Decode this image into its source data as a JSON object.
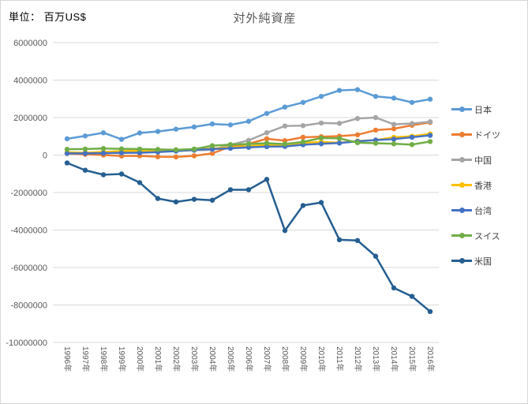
{
  "header": {
    "unit_label": "単位： 百万US$",
    "title": "対外純資産"
  },
  "chart_data": {
    "type": "line",
    "title": "対外純資産",
    "unit": "百万US$",
    "x": [
      "1996年",
      "1997年",
      "1998年",
      "1999年",
      "2000年",
      "2001年",
      "2002年",
      "2003年",
      "2004年",
      "2005年",
      "2006年",
      "2007年",
      "2008年",
      "2009年",
      "2010年",
      "2011年",
      "2012年",
      "2013年",
      "2014年",
      "2015年",
      "2016年"
    ],
    "series": [
      {
        "name": "日本",
        "color": "#5B9BD5",
        "values": [
          870000,
          1020000,
          1190000,
          840000,
          1180000,
          1260000,
          1380000,
          1500000,
          1660000,
          1610000,
          1800000,
          2220000,
          2560000,
          2810000,
          3130000,
          3450000,
          3490000,
          3130000,
          3040000,
          2810000,
          2980000
        ]
      },
      {
        "name": "ドイツ",
        "color": "#ED7D31",
        "values": [
          80000,
          40000,
          0,
          -50000,
          -40000,
          -90000,
          -100000,
          -40000,
          90000,
          450000,
          600000,
          870000,
          770000,
          950000,
          980000,
          1010000,
          1080000,
          1330000,
          1400000,
          1590000,
          1740000
        ]
      },
      {
        "name": "中国",
        "color": "#A5A5A5",
        "values": [
          100000,
          120000,
          130000,
          100000,
          150000,
          180000,
          220000,
          250000,
          280000,
          550000,
          780000,
          1190000,
          1550000,
          1570000,
          1710000,
          1690000,
          1950000,
          2000000,
          1640000,
          1680000,
          1780000
        ]
      },
      {
        "name": "香港",
        "color": "#FFC000",
        "values": [
          150000,
          120000,
          170000,
          210000,
          230000,
          250000,
          270000,
          310000,
          350000,
          410000,
          470000,
          550000,
          490000,
          650000,
          700000,
          660000,
          750000,
          800000,
          950000,
          1000000,
          1130000
        ]
      },
      {
        "name": "台湾",
        "color": "#4472C4",
        "values": [
          90000,
          90000,
          100000,
          120000,
          120000,
          160000,
          210000,
          280000,
          320000,
          360000,
          410000,
          450000,
          460000,
          550000,
          600000,
          640000,
          730000,
          800000,
          850000,
          950000,
          1050000
        ]
      },
      {
        "name": "スイス",
        "color": "#70AD47",
        "values": [
          310000,
          320000,
          350000,
          330000,
          320000,
          300000,
          280000,
          320000,
          500000,
          560000,
          590000,
          630000,
          590000,
          700000,
          910000,
          890000,
          660000,
          630000,
          600000,
          560000,
          720000
        ]
      },
      {
        "name": "米国",
        "color": "#255E91",
        "values": [
          -420000,
          -810000,
          -1050000,
          -1010000,
          -1470000,
          -2320000,
          -2500000,
          -2360000,
          -2410000,
          -1850000,
          -1850000,
          -1300000,
          -4030000,
          -2690000,
          -2530000,
          -4520000,
          -4560000,
          -5400000,
          -7090000,
          -7540000,
          -8350000
        ]
      }
    ],
    "ylim": [
      -10000000,
      6000000
    ],
    "ytick_step": 2000000,
    "grid": true,
    "gridline_color": "#D9D9D9",
    "legend_position": "right"
  }
}
